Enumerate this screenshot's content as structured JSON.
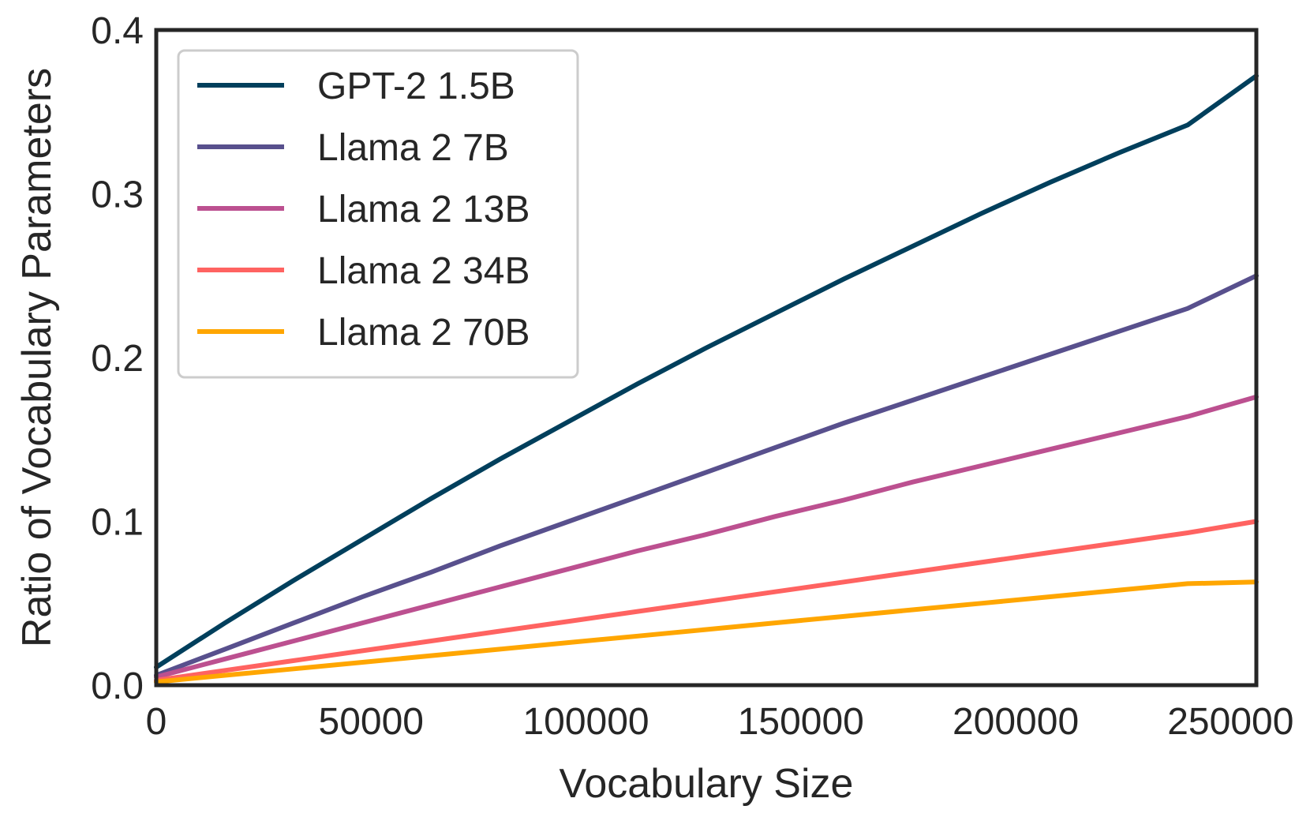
{
  "chart_data": {
    "type": "line",
    "title": "",
    "xlabel": "Vocabulary Size",
    "ylabel": "Ratio of Vocabulary Parameters",
    "xlim": [
      0,
      256000
    ],
    "ylim": [
      0,
      0.4
    ],
    "xticks": [
      0,
      50000,
      100000,
      150000,
      200000,
      250000
    ],
    "xtick_labels": [
      "0",
      "50000",
      "100000",
      "150000",
      "200000",
      "250000"
    ],
    "yticks": [
      0.0,
      0.1,
      0.2,
      0.3,
      0.4
    ],
    "ytick_labels": [
      "0.0",
      "0.1",
      "0.2",
      "0.3",
      "0.4"
    ],
    "grid": false,
    "legend_position": "top-left",
    "x": [
      0,
      16000,
      32000,
      48000,
      64000,
      80000,
      96000,
      112000,
      128000,
      144000,
      160000,
      176000,
      192000,
      208000,
      224000,
      240000,
      256000
    ],
    "series": [
      {
        "name": "GPT-2 1.5B",
        "color": "#003f5c",
        "values": [
          0.011,
          0.038,
          0.064,
          0.089,
          0.114,
          0.138,
          0.161,
          0.184,
          0.206,
          0.227,
          0.248,
          0.268,
          0.288,
          0.307,
          0.325,
          0.342,
          0.372
        ]
      },
      {
        "name": "Llama 2 7B",
        "color": "#58508d",
        "values": [
          0.006,
          0.022,
          0.038,
          0.054,
          0.069,
          0.085,
          0.1,
          0.115,
          0.13,
          0.145,
          0.16,
          0.174,
          0.188,
          0.202,
          0.216,
          0.23,
          0.25
        ]
      },
      {
        "name": "Llama 2 13B",
        "color": "#bc5090",
        "values": [
          0.005,
          0.016,
          0.027,
          0.038,
          0.049,
          0.06,
          0.071,
          0.082,
          0.092,
          0.103,
          0.113,
          0.124,
          0.134,
          0.144,
          0.154,
          0.164,
          0.176
        ]
      },
      {
        "name": "Llama 2 34B",
        "color": "#ff6361",
        "values": [
          0.003,
          0.009,
          0.015,
          0.021,
          0.027,
          0.033,
          0.039,
          0.045,
          0.051,
          0.057,
          0.063,
          0.069,
          0.075,
          0.081,
          0.087,
          0.093,
          0.1
        ]
      },
      {
        "name": "Llama 2 70B",
        "color": "#ffa600",
        "values": [
          0.002,
          0.006,
          0.01,
          0.014,
          0.018,
          0.022,
          0.026,
          0.03,
          0.034,
          0.038,
          0.042,
          0.046,
          0.05,
          0.054,
          0.058,
          0.062,
          0.063
        ]
      }
    ]
  }
}
